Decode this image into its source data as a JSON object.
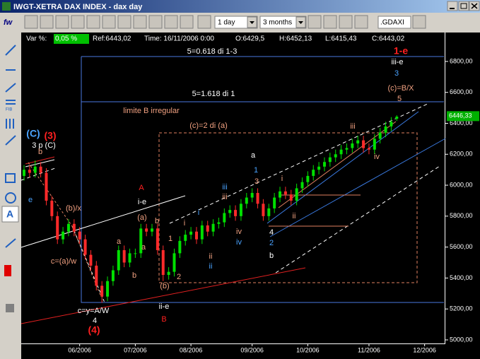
{
  "window": {
    "title": "IWGT-XETRA DAX INDEX - dax day"
  },
  "toolbar": {
    "logo": "fw",
    "interval": "1 day",
    "range": "3 months",
    "symbol": ".GDAXI",
    "fib": "FIB"
  },
  "info": {
    "var_label": "Var %:",
    "var_value": "0,05 %",
    "ref": "Ref:6443,02",
    "time": "Time: 16/11/2006 0:00",
    "open": "O:6429,5",
    "high": "H:6452,13",
    "low": "L:6415,43",
    "close": "C:6443,02"
  },
  "chart_data": {
    "type": "candlestick",
    "categories": [
      null,
      null,
      null,
      null,
      null,
      null,
      null,
      null,
      null,
      null,
      "06/2006",
      null,
      null,
      null,
      null,
      null,
      null,
      null,
      null,
      null,
      "07/2006",
      null,
      null,
      null,
      null,
      null,
      null,
      null,
      null,
      null,
      "08/2006",
      null,
      null,
      null,
      null,
      null,
      null,
      null,
      null,
      null,
      null,
      "09/2006",
      null,
      null,
      null,
      null,
      null,
      null,
      null,
      null,
      null,
      "10/2006",
      null,
      null,
      null,
      null,
      null,
      null,
      null,
      null,
      null,
      null,
      "11/2006",
      null,
      null,
      null,
      null,
      null,
      null,
      null,
      null,
      null,
      "12/2006",
      null,
      null,
      null
    ],
    "open": [
      6060,
      6100,
      6080,
      6120,
      6080,
      5900,
      5800,
      5650,
      5700,
      5750,
      5700,
      5650,
      5550,
      5480,
      5350,
      5280,
      5380,
      5450,
      5580,
      5500,
      5560,
      5560,
      5720,
      5700,
      5720,
      5580,
      5420,
      5440,
      5560,
      5640,
      5680,
      5700,
      5650,
      5740,
      5700,
      5750,
      5760,
      5820,
      5840,
      5800,
      5880,
      5920,
      5950,
      5880,
      5800,
      5850,
      5920,
      5960,
      5940,
      5900,
      5980,
      6020,
      6060,
      6100,
      6120,
      6150,
      6180,
      6200,
      6230,
      6240,
      6270,
      6290,
      6240,
      6230,
      6300,
      6340,
      6380,
      6429.5,
      null,
      null,
      null,
      null,
      null,
      null,
      null,
      null
    ],
    "high": [
      6130,
      6130,
      6160,
      6150,
      6110,
      5930,
      5830,
      5730,
      5780,
      5780,
      5730,
      5680,
      5580,
      5510,
      5380,
      5410,
      5480,
      5610,
      5610,
      5590,
      5590,
      5750,
      5750,
      5750,
      5750,
      5610,
      5470,
      5590,
      5670,
      5710,
      5730,
      5730,
      5770,
      5770,
      5780,
      5790,
      5850,
      5870,
      5870,
      5910,
      5950,
      5980,
      5980,
      5910,
      5880,
      5950,
      5990,
      5990,
      5970,
      6010,
      6050,
      6090,
      6130,
      6150,
      6180,
      6210,
      6230,
      6260,
      6270,
      6300,
      6320,
      6320,
      6270,
      6330,
      6370,
      6410,
      6440,
      6452.13,
      null,
      null,
      null,
      null,
      null,
      null,
      null,
      null
    ],
    "low": [
      6030,
      6050,
      6050,
      6050,
      5870,
      5770,
      5620,
      5620,
      5670,
      5670,
      5620,
      5520,
      5450,
      5320,
      5240,
      5250,
      5350,
      5420,
      5470,
      5470,
      5530,
      5530,
      5670,
      5670,
      5550,
      5380,
      5390,
      5410,
      5530,
      5610,
      5650,
      5620,
      5620,
      5670,
      5670,
      5720,
      5730,
      5790,
      5770,
      5770,
      5850,
      5890,
      5850,
      5770,
      5770,
      5820,
      5890,
      5910,
      5870,
      5870,
      5950,
      5990,
      6030,
      6070,
      6090,
      6120,
      6150,
      6170,
      6200,
      6210,
      6240,
      6210,
      6200,
      6200,
      6270,
      6310,
      6350,
      6415.43,
      null,
      null,
      null,
      null,
      null,
      null,
      null,
      null
    ],
    "close": [
      6100,
      6080,
      6120,
      6080,
      5900,
      5800,
      5650,
      5700,
      5750,
      5700,
      5650,
      5550,
      5480,
      5350,
      5280,
      5380,
      5450,
      5580,
      5500,
      5560,
      5560,
      5720,
      5700,
      5720,
      5580,
      5420,
      5440,
      5560,
      5640,
      5680,
      5700,
      5650,
      5740,
      5700,
      5750,
      5760,
      5820,
      5840,
      5800,
      5880,
      5920,
      5950,
      5880,
      5800,
      5850,
      5920,
      5960,
      5940,
      5900,
      5980,
      6020,
      6060,
      6100,
      6120,
      6150,
      6180,
      6200,
      6230,
      6240,
      6270,
      6290,
      6240,
      6230,
      6300,
      6340,
      6380,
      6410,
      6443.02,
      null,
      null,
      null,
      null,
      null,
      null,
      null,
      null
    ],
    "up_color": "#00e000",
    "down_color": "#ff2a2a",
    "ylim": [
      4977,
      6987
    ],
    "yticks": [
      {
        "value": 5000,
        "label": "5000,00"
      },
      {
        "value": 5200,
        "label": "5200,00"
      },
      {
        "value": 5400,
        "label": "5400,00"
      },
      {
        "value": 5600,
        "label": "5600,00"
      },
      {
        "value": 5800,
        "label": "5800,00"
      },
      {
        "value": 6000,
        "label": "6000,00"
      },
      {
        "value": 6200,
        "label": "6200,00"
      },
      {
        "value": 6400,
        "label": "6400,00"
      },
      {
        "value": 6600,
        "label": "6600,00"
      },
      {
        "value": 6800,
        "label": "6800,00"
      }
    ],
    "last_price": {
      "value": 6446.33,
      "label": "6446,33"
    },
    "annotations": [
      {
        "text": "5=0.618 di 1-3",
        "color": "#ffffff"
      },
      {
        "text": "1-e",
        "color": "#ff2020"
      },
      {
        "text": "iii-e",
        "color": "#ffffff"
      },
      {
        "text": "3",
        "color": "#4aa3ff"
      },
      {
        "text": "(c)=B/X",
        "color": "#f0a080"
      },
      {
        "text": "5",
        "color": "#f0a080"
      },
      {
        "text": "5=1.618 di 1",
        "color": "#ffffff"
      },
      {
        "text": "limite B irregular",
        "color": "#f0a080"
      },
      {
        "text": "(c)=2 di (a)",
        "color": "#f0a080"
      },
      {
        "text": "(C)",
        "color": "#4aa3ff"
      },
      {
        "text": "(3)",
        "color": "#ff2020"
      },
      {
        "text": "3 p (C)",
        "color": "#ffffff"
      },
      {
        "text": "b",
        "color": "#f0a080"
      },
      {
        "text": "a",
        "color": "#ffffff"
      },
      {
        "text": "1",
        "color": "#4aa3ff"
      },
      {
        "text": "3",
        "color": "#f0a080"
      },
      {
        "text": "iii",
        "color": "#4aa3ff"
      },
      {
        "text": "iii",
        "color": "#f0a080"
      },
      {
        "text": "A",
        "color": "#ff2020"
      },
      {
        "text": "i-e",
        "color": "#ffffff"
      },
      {
        "text": "(b)/x",
        "color": "#f0a080"
      },
      {
        "text": "(a)",
        "color": "#f0a080"
      },
      {
        "text": "b",
        "color": "#f0a080"
      },
      {
        "text": "i",
        "color": "#4aa3ff"
      },
      {
        "text": "i",
        "color": "#f0a080"
      },
      {
        "text": "i",
        "color": "#f0a080"
      },
      {
        "text": "ii",
        "color": "#f0a080"
      },
      {
        "text": "iii",
        "color": "#f0a080"
      },
      {
        "text": "iv",
        "color": "#f0a080"
      },
      {
        "text": "iv",
        "color": "#f0a080"
      },
      {
        "text": "iv",
        "color": "#4aa3ff"
      },
      {
        "text": "4",
        "color": "#ffffff"
      },
      {
        "text": "2",
        "color": "#4aa3ff"
      },
      {
        "text": "b",
        "color": "#ffffff"
      },
      {
        "text": "a",
        "color": "#f0a080"
      },
      {
        "text": "a",
        "color": "#f0a080"
      },
      {
        "text": "1",
        "color": "#f0a080"
      },
      {
        "text": "ii",
        "color": "#f0a080"
      },
      {
        "text": "ii",
        "color": "#4aa3ff"
      },
      {
        "text": "c=(a)/w",
        "color": "#f0a080"
      },
      {
        "text": "b",
        "color": "#f0a080"
      },
      {
        "text": "2",
        "color": "#f0a080"
      },
      {
        "text": "(b)",
        "color": "#f0a080"
      },
      {
        "text": "c=y=A/W",
        "color": "#ffffff"
      },
      {
        "text": "4",
        "color": "#ffffff"
      },
      {
        "text": "(4)",
        "color": "#ff2020"
      },
      {
        "text": "ii-e",
        "color": "#ffffff"
      },
      {
        "text": "B",
        "color": "#ff2020"
      },
      {
        "text": "e",
        "color": "#4aa3ff"
      }
    ]
  }
}
